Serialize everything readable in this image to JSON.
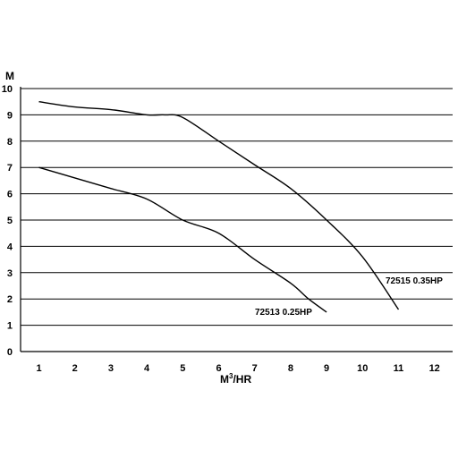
{
  "chart_data": {
    "type": "line",
    "title": "",
    "xlabel": "M",
    "xlabel_sup": "3",
    "xlabel_suffix": "/HR",
    "ylabel": "M",
    "xlim": [
      0,
      12
    ],
    "ylim": [
      0,
      10
    ],
    "x_ticks": [
      "1",
      "2",
      "3",
      "4",
      "5",
      "6",
      "7",
      "8",
      "9",
      "10",
      "11",
      "12"
    ],
    "y_ticks": [
      "0",
      "1",
      "2",
      "3",
      "4",
      "5",
      "6",
      "7",
      "8",
      "9",
      "10"
    ],
    "grid": "horizontal",
    "legend": "none",
    "series": [
      {
        "name": "72515 0.35HP",
        "x": [
          1,
          2,
          3,
          4,
          4.5,
          5,
          6,
          7,
          8,
          9,
          10,
          11
        ],
        "y": [
          9.5,
          9.3,
          9.2,
          9.0,
          9.0,
          8.9,
          8.0,
          7.1,
          6.2,
          5.0,
          3.6,
          1.6
        ]
      },
      {
        "name": "72513 0.25HP",
        "x": [
          1,
          2,
          3,
          4,
          5,
          6,
          7,
          8,
          8.5,
          9
        ],
        "y": [
          7.0,
          6.6,
          6.2,
          5.8,
          5.0,
          4.5,
          3.5,
          2.6,
          2.0,
          1.5
        ]
      }
    ]
  }
}
